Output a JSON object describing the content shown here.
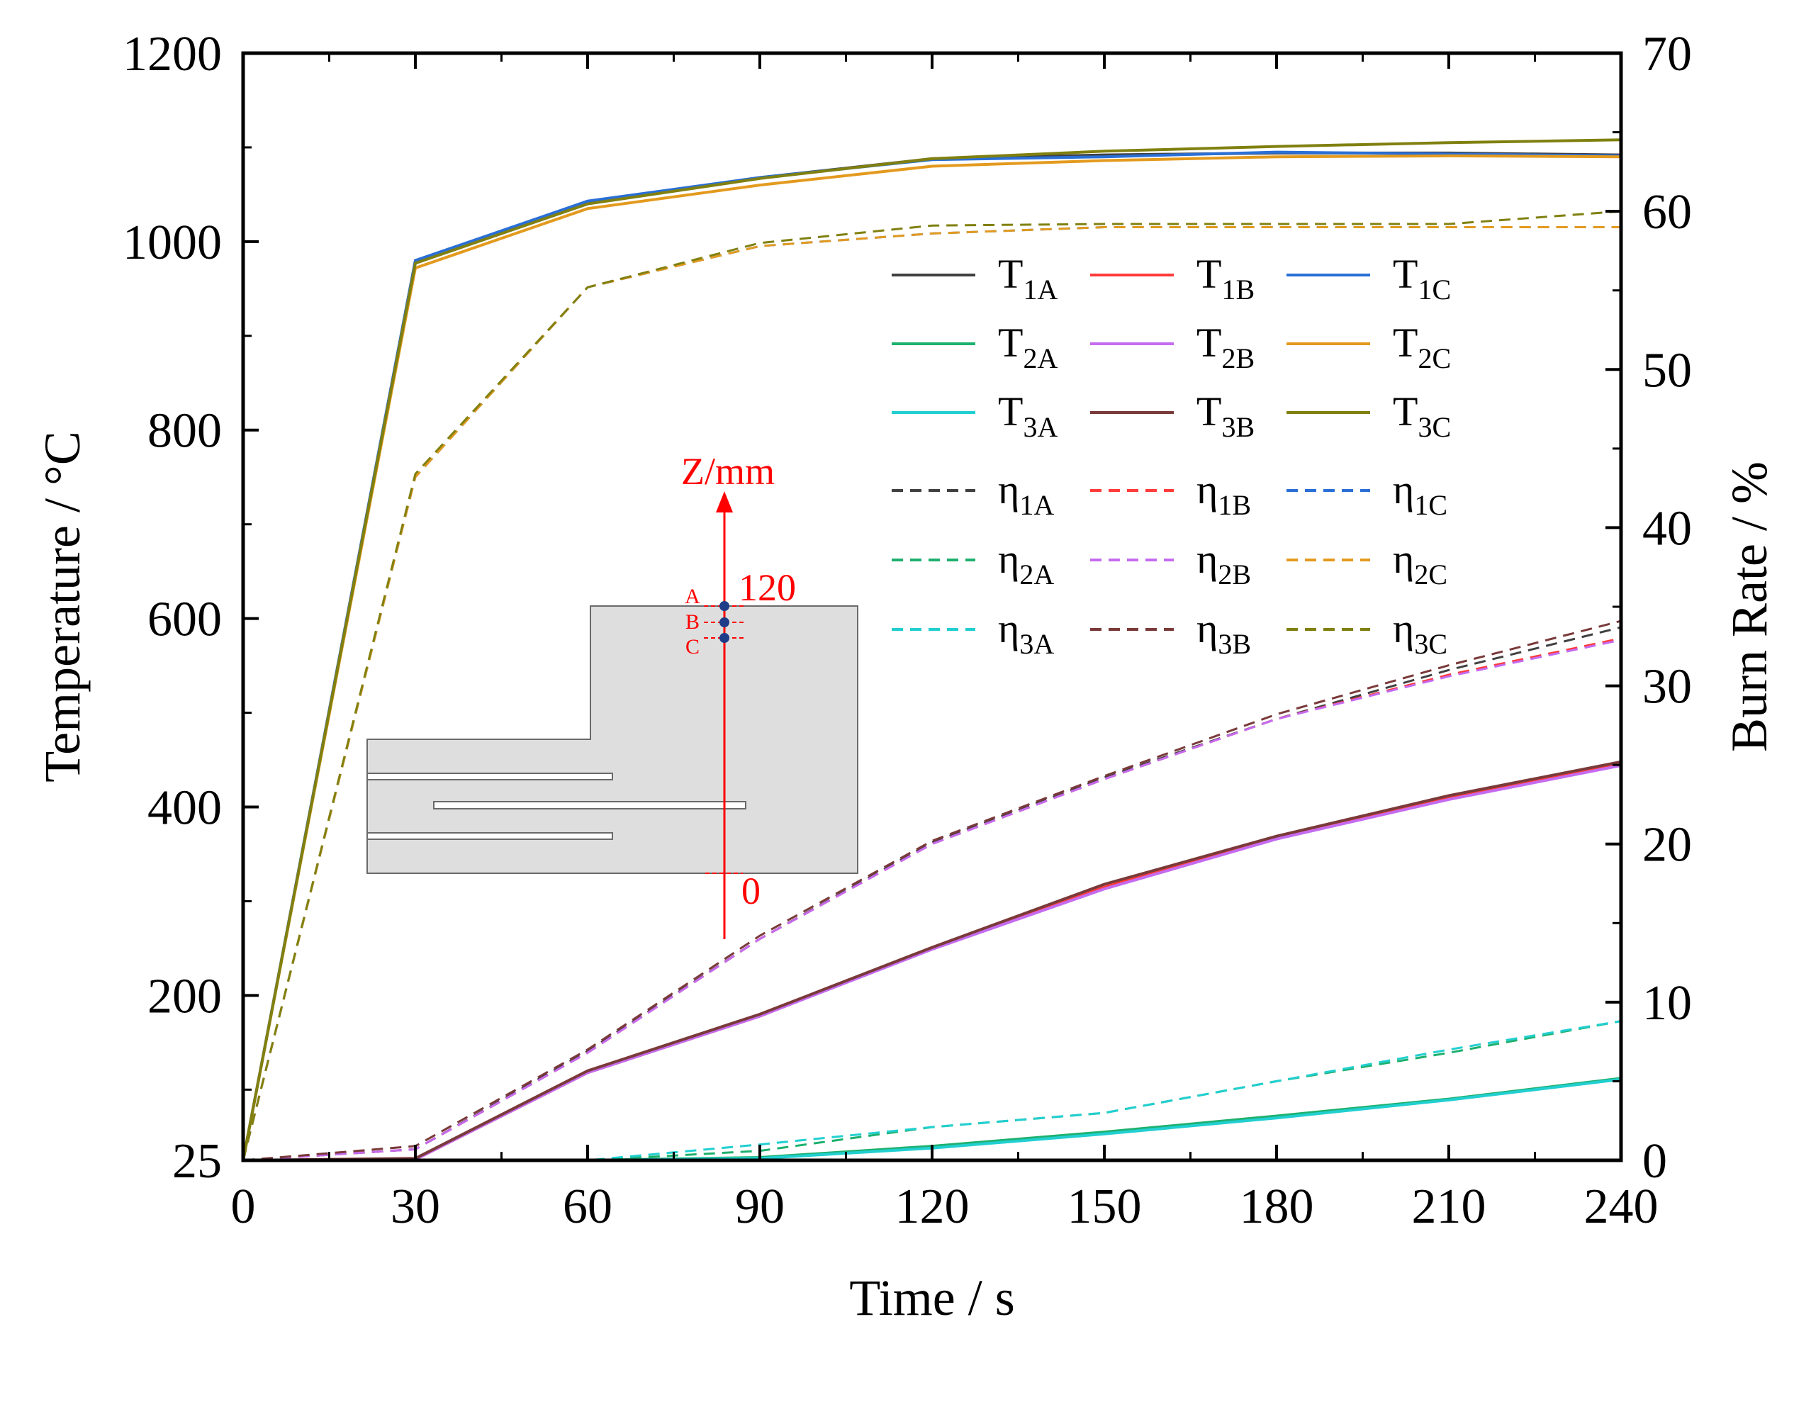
{
  "chart_data": {
    "type": "line",
    "x": [
      0,
      30,
      60,
      90,
      120,
      150,
      180,
      210,
      240
    ],
    "xlabel": "Time / s",
    "ylabel": "Temperature / °C",
    "y2label": "Burn Rate / %",
    "xlim": [
      0,
      240
    ],
    "ylim": [
      25,
      1200
    ],
    "y2lim": [
      0,
      70
    ],
    "xticks": [
      "0",
      "30",
      "60",
      "90",
      "120",
      "150",
      "180",
      "210",
      "240"
    ],
    "yticks": [
      25,
      200,
      400,
      600,
      800,
      1000,
      1200
    ],
    "yticklabels": [
      "25",
      "200",
      "400",
      "600",
      "800",
      "1000",
      "1200"
    ],
    "y2ticks": [
      0,
      10,
      20,
      30,
      40,
      50,
      60,
      70
    ],
    "y2ticklabels": [
      "0",
      "10",
      "20",
      "30",
      "40",
      "50",
      "60",
      "70"
    ],
    "legend_position": "top-right",
    "temperature_series": [
      {
        "name": "T1A",
        "base": "T",
        "sub": "1A",
        "color": "#404040",
        "values": [
          25,
          980,
          1042,
          1068,
          1088,
          1092,
          1094,
          1094,
          1092
        ]
      },
      {
        "name": "T1B",
        "base": "T",
        "sub": "1B",
        "color": "#ff3b3b",
        "values": [
          25,
          26,
          118,
          178,
          250,
          315,
          368,
          410,
          446
        ]
      },
      {
        "name": "T1C",
        "base": "T",
        "sub": "1C",
        "color": "#2a6fd6",
        "values": [
          25,
          980,
          1043,
          1068,
          1087,
          1090,
          1095,
          1093,
          1091
        ]
      },
      {
        "name": "T2A",
        "base": "T",
        "sub": "2A",
        "color": "#1db06e",
        "values": [
          25,
          25,
          25,
          28,
          40,
          55,
          72,
          90,
          112
        ]
      },
      {
        "name": "T2B",
        "base": "T",
        "sub": "2B",
        "color": "#c46bf0",
        "values": [
          25,
          26,
          118,
          178,
          249,
          313,
          366,
          408,
          444
        ]
      },
      {
        "name": "T2C",
        "base": "T",
        "sub": "2C",
        "color": "#e39a1e",
        "values": [
          25,
          972,
          1035,
          1060,
          1080,
          1086,
          1090,
          1091,
          1090
        ]
      },
      {
        "name": "T3A",
        "base": "T",
        "sub": "3A",
        "color": "#22cfd0",
        "values": [
          25,
          25,
          25,
          27,
          38,
          53,
          70,
          89,
          111
        ]
      },
      {
        "name": "T3B",
        "base": "T",
        "sub": "3B",
        "color": "#7a3a3a",
        "values": [
          25,
          27,
          120,
          180,
          251,
          318,
          369,
          412,
          448
        ]
      },
      {
        "name": "T3C",
        "base": "T",
        "sub": "3C",
        "color": "#808010",
        "values": [
          25,
          977,
          1040,
          1067,
          1088,
          1096,
          1101,
          1105,
          1108
        ]
      }
    ],
    "burn_rate_series": [
      {
        "name": "η1A",
        "base": "η",
        "sub": "1A",
        "color": "#404040",
        "values": [
          0,
          0.7,
          6.9,
          14,
          20.1,
          24.2,
          27.9,
          31.0,
          33.7
        ]
      },
      {
        "name": "η1B",
        "base": "η",
        "sub": "1B",
        "color": "#ff3b3b",
        "values": [
          0,
          0.7,
          6.8,
          14,
          20,
          24.1,
          27.9,
          30.7,
          33.0
        ]
      },
      {
        "name": "η1C",
        "base": "η",
        "sub": "1C",
        "color": "#2a6fd6",
        "values": [
          0,
          43.2,
          55.2,
          57.8,
          58.6,
          59,
          59,
          59,
          59
        ]
      },
      {
        "name": "η2A",
        "base": "η",
        "sub": "2A",
        "color": "#1db06e",
        "values": [
          0,
          0,
          0,
          0.6,
          2.1,
          3,
          5,
          6.8,
          8.8
        ]
      },
      {
        "name": "η2B",
        "base": "η",
        "sub": "2B",
        "color": "#c46bf0",
        "values": [
          0,
          0.7,
          6.8,
          14,
          20,
          24.1,
          27.9,
          30.6,
          32.9
        ]
      },
      {
        "name": "η2C",
        "base": "η",
        "sub": "2C",
        "color": "#e39a1e",
        "values": [
          0,
          43.2,
          55.2,
          57.8,
          58.6,
          59,
          59,
          59,
          59
        ]
      },
      {
        "name": "η3A",
        "base": "η",
        "sub": "3A",
        "color": "#22cfd0",
        "values": [
          0,
          0,
          0,
          1,
          2.1,
          3,
          5,
          7,
          8.8
        ]
      },
      {
        "name": "η3B",
        "base": "η",
        "sub": "3B",
        "color": "#7a3a3a",
        "values": [
          0,
          0.9,
          7,
          14.2,
          20.2,
          24.3,
          28.2,
          31.3,
          34.1
        ]
      },
      {
        "name": "η3C",
        "base": "η",
        "sub": "3C",
        "color": "#808010",
        "values": [
          0,
          43.4,
          55.2,
          58,
          59.1,
          59.2,
          59.2,
          59.2,
          60
        ]
      }
    ]
  },
  "inset": {
    "axis_label": "Z/mm",
    "top_value": "120",
    "bottom_value": "0",
    "points": [
      "A",
      "B",
      "C"
    ]
  }
}
